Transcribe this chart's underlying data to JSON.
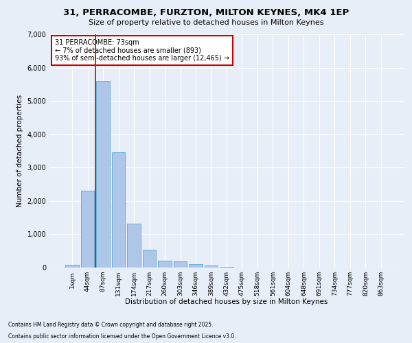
{
  "title": "31, PERRACOMBE, FURZTON, MILTON KEYNES, MK4 1EP",
  "subtitle": "Size of property relative to detached houses in Milton Keynes",
  "xlabel": "Distribution of detached houses by size in Milton Keynes",
  "ylabel": "Number of detached properties",
  "bar_labels": [
    "1sqm",
    "44sqm",
    "87sqm",
    "131sqm",
    "174sqm",
    "217sqm",
    "260sqm",
    "303sqm",
    "346sqm",
    "389sqm",
    "432sqm",
    "475sqm",
    "518sqm",
    "561sqm",
    "604sqm",
    "648sqm",
    "691sqm",
    "734sqm",
    "777sqm",
    "820sqm",
    "863sqm"
  ],
  "bar_values": [
    80,
    2300,
    5600,
    3450,
    1320,
    530,
    210,
    190,
    110,
    65,
    30,
    5,
    3,
    2,
    1,
    1,
    1,
    1,
    1,
    1,
    1
  ],
  "bar_color": "#aec6e8",
  "bar_edge_color": "#6bafd6",
  "ylim": [
    0,
    7000
  ],
  "yticks": [
    0,
    1000,
    2000,
    3000,
    4000,
    5000,
    6000,
    7000
  ],
  "property_line_x": 1.5,
  "annotation_title": "31 PERRACOMBE: 73sqm",
  "annotation_line1": "← 7% of detached houses are smaller (893)",
  "annotation_line2": "93% of semi-detached houses are larger (12,465) →",
  "annotation_box_color": "#ffffff",
  "annotation_box_edge": "#cc0000",
  "vline_color": "#cc0000",
  "bg_color": "#e8eef8",
  "footnote1": "Contains HM Land Registry data © Crown copyright and database right 2025.",
  "footnote2": "Contains public sector information licensed under the Open Government Licence v3.0."
}
